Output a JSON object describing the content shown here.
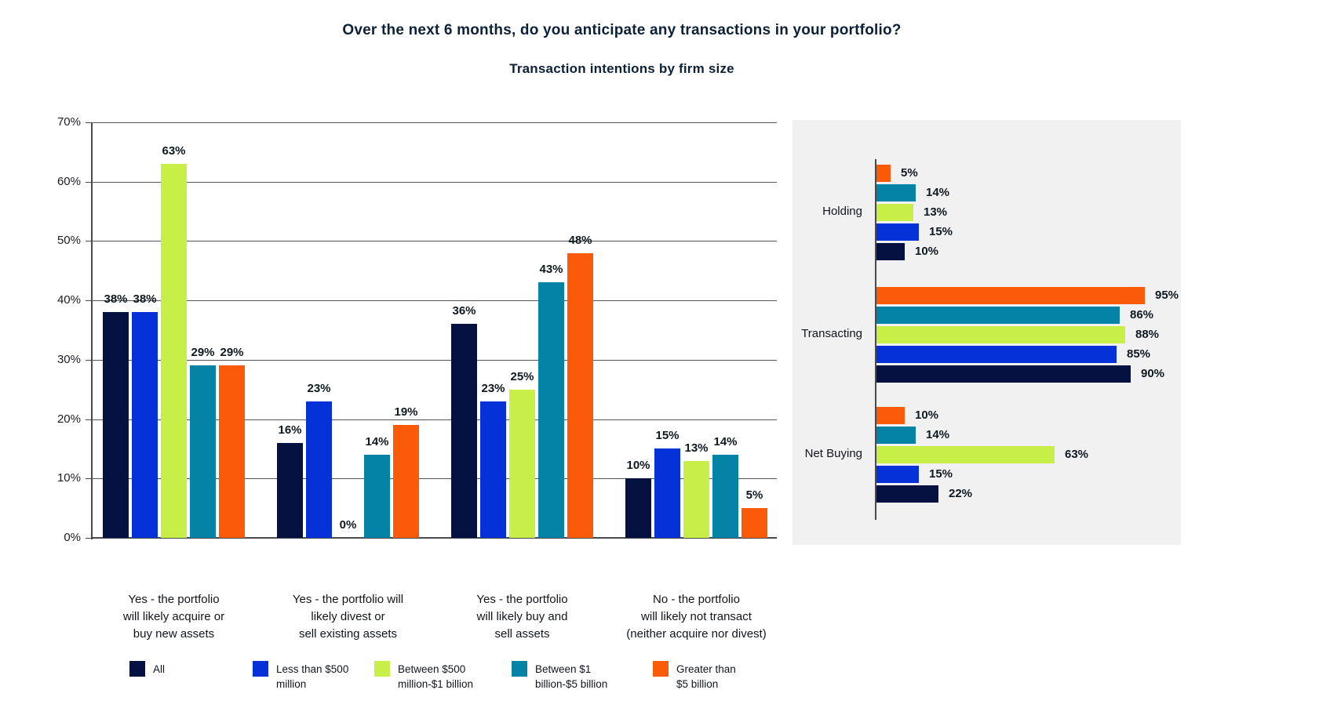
{
  "page": {
    "title": "Over the next 6 months, do you anticipate any transactions in your portfolio?",
    "subtitle": "Transaction intentions by firm size"
  },
  "colors": {
    "navy": "#051140",
    "blue": "#0531d8",
    "lime": "#c8ee48",
    "teal": "#0583a6",
    "orange": "#fb5a09",
    "panel_bg": "#f1f1f2",
    "grid": "#55565a",
    "axis": "#4a4b4f",
    "title_text": "#0c2137",
    "label_text": "#10151c"
  },
  "chart_data": [
    {
      "type": "bar",
      "orientation": "vertical",
      "title": "Transaction intentions by firm size",
      "xlabel": "",
      "ylabel": "",
      "ylim": [
        0,
        70
      ],
      "ytick_step": 10,
      "yticks": [
        "0%",
        "10%",
        "20%",
        "30%",
        "40%",
        "50%",
        "60%",
        "70%"
      ],
      "grid": true,
      "legend_position": "bottom",
      "label_format": "{v}%",
      "categories": [
        "Yes - the portfolio will likely acquire or buy new assets",
        "Yes - the portfolio will likely divest or sell existing assets",
        "Yes - the portfolio will likely buy and sell assets",
        "No - the portfolio will likely not transact (neither acquire nor divest)"
      ],
      "category_lines": [
        [
          "Yes - the portfolio",
          "will likely acquire or",
          "buy new assets"
        ],
        [
          "Yes - the portfolio will",
          "likely divest or",
          "sell existing assets"
        ],
        [
          "Yes - the portfolio",
          "will likely buy and",
          "sell assets"
        ],
        [
          "No - the portfolio",
          "will likely not transact",
          "(neither acquire nor divest)"
        ]
      ],
      "series": [
        {
          "name": "All",
          "color": "navy",
          "values": [
            38,
            16,
            36,
            10
          ]
        },
        {
          "name": "Less than $500 million",
          "color": "blue",
          "values": [
            38,
            23,
            23,
            15
          ]
        },
        {
          "name": "Between $500 million-$1 billion",
          "color": "lime",
          "values": [
            63,
            0,
            25,
            13
          ]
        },
        {
          "name": "Between $1 billion-$5 billion",
          "color": "teal",
          "values": [
            29,
            14,
            43,
            14
          ]
        },
        {
          "name": "Greater than $5 billion",
          "color": "orange",
          "values": [
            29,
            19,
            48,
            5
          ]
        }
      ]
    },
    {
      "type": "bar",
      "orientation": "horizontal",
      "title": "",
      "xlabel": "",
      "ylabel": "",
      "xlim": [
        0,
        100
      ],
      "grid": false,
      "label_format": "{v}%",
      "bar_order_note": "bars drawn top to bottom within each category: orange, teal, lime, blue, navy",
      "categories": [
        "Holding",
        "Transacting",
        "Net Buying"
      ],
      "series": [
        {
          "name": "Greater than $5 billion",
          "color": "orange",
          "values": [
            5,
            95,
            10
          ]
        },
        {
          "name": "Between $1 billion-$5 billion",
          "color": "teal",
          "values": [
            14,
            86,
            14
          ]
        },
        {
          "name": "Between $500 million-$1 billion",
          "color": "lime",
          "values": [
            13,
            88,
            63
          ]
        },
        {
          "name": "Less than $500 million",
          "color": "blue",
          "values": [
            15,
            85,
            15
          ]
        },
        {
          "name": "All",
          "color": "navy",
          "values": [
            10,
            90,
            22
          ]
        }
      ]
    }
  ],
  "legend": {
    "items": [
      {
        "label": "All",
        "lines": [
          "All"
        ],
        "color": "navy"
      },
      {
        "label": "Less than $500 million",
        "lines": [
          "Less than $500",
          "million"
        ],
        "color": "blue"
      },
      {
        "label": "Between $500 million-$1 billion",
        "lines": [
          "Between $500",
          "million-$1 billion"
        ],
        "color": "lime"
      },
      {
        "label": "Between $1 billion-$5 billion",
        "lines": [
          "Between $1",
          "billion-$5 billion"
        ],
        "color": "teal"
      },
      {
        "label": "Greater than $5 billion",
        "lines": [
          "Greater than",
          "$5 billion"
        ],
        "color": "orange"
      }
    ]
  }
}
